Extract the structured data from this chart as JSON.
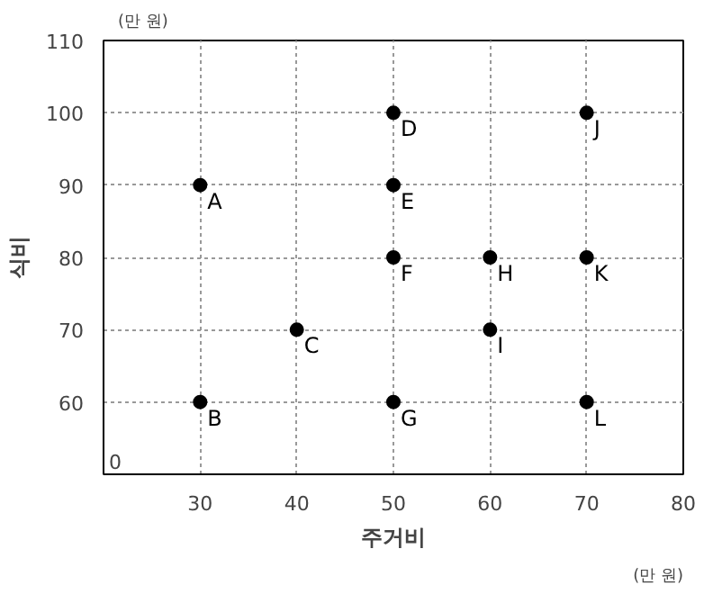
{
  "chart_data": {
    "type": "scatter",
    "xlabel": "주거비",
    "ylabel": "식비",
    "x": [
      30,
      30,
      40,
      50,
      50,
      50,
      50,
      60,
      60,
      70,
      70,
      70
    ],
    "series": [
      {
        "color": "#000000",
        "values": [
          90,
          60,
          70,
          100,
          90,
          80,
          60,
          80,
          70,
          100,
          80,
          60
        ]
      }
    ],
    "xlim": [
      20,
      80
    ],
    "xticks": [
      30,
      40,
      50,
      60,
      70,
      80
    ],
    "ylim": [
      50,
      110
    ],
    "yticks": [
      60,
      70,
      80,
      90,
      100,
      110
    ],
    "grid": true,
    "marker": "circle",
    "annotations": [
      "(만 원)",
      "(만 원)",
      "0",
      {
        "text": "A",
        "x": 30,
        "y": 90
      },
      {
        "text": "B",
        "x": 30,
        "y": 60
      },
      {
        "text": "C",
        "x": 40,
        "y": 70
      },
      {
        "text": "D",
        "x": 50,
        "y": 100
      },
      {
        "text": "E",
        "x": 50,
        "y": 90
      },
      {
        "text": "F",
        "x": 50,
        "y": 80
      },
      {
        "text": "G",
        "x": 50,
        "y": 60
      },
      {
        "text": "H",
        "x": 60,
        "y": 80
      },
      {
        "text": "I",
        "x": 60,
        "y": 70
      },
      {
        "text": "J",
        "x": 70,
        "y": 100
      },
      {
        "text": "K",
        "x": 70,
        "y": 80
      },
      {
        "text": "L",
        "x": 70,
        "y": 60
      }
    ]
  }
}
